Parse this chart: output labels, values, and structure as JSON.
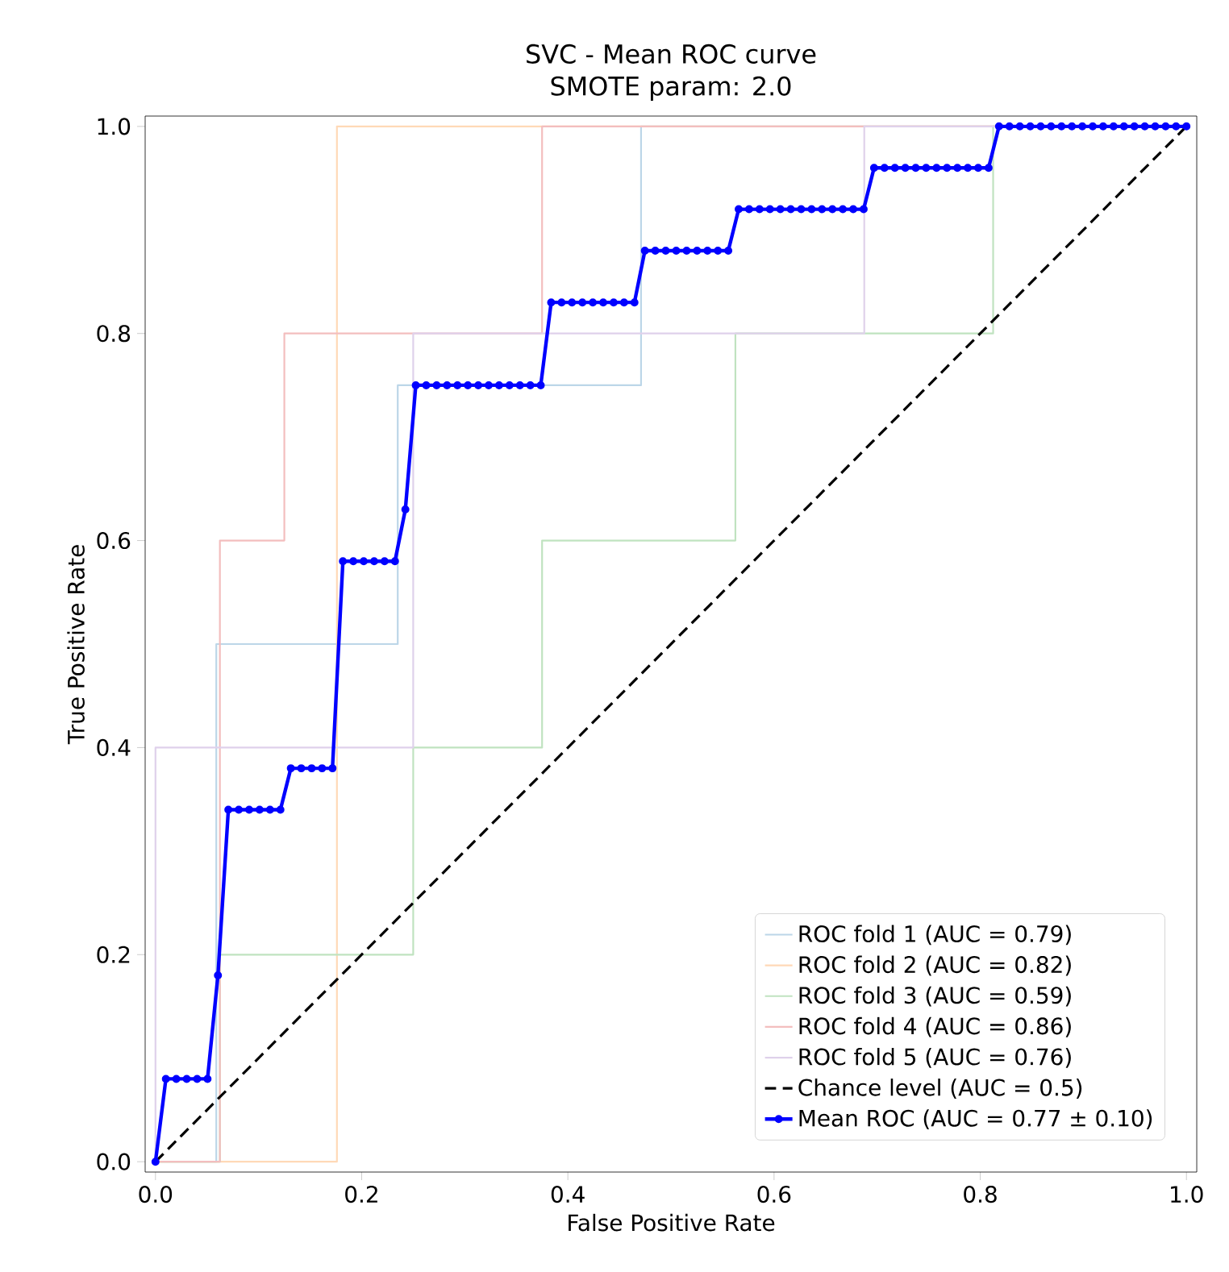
{
  "chart_data": {
    "type": "line",
    "title": "SVC - Mean ROC curve",
    "subtitle": "SMOTE  param: 2.0",
    "xlabel": "False Positive Rate",
    "ylabel": "True Positive Rate",
    "xlim": [
      -0.01,
      1.01
    ],
    "ylim": [
      -0.01,
      1.01
    ],
    "xticks": [
      {
        "value": 0,
        "label": "0.0"
      },
      {
        "value": 0.2,
        "label": "0.2"
      },
      {
        "value": 0.4,
        "label": "0.4"
      },
      {
        "value": 0.6,
        "label": "0.6"
      },
      {
        "value": 0.8,
        "label": "0.8"
      },
      {
        "value": 1,
        "label": "1.0"
      }
    ],
    "yticks": [
      {
        "value": 0,
        "label": "0.0"
      },
      {
        "value": 0.2,
        "label": "0.2"
      },
      {
        "value": 0.4,
        "label": "0.4"
      },
      {
        "value": 0.6,
        "label": "0.6"
      },
      {
        "value": 0.8,
        "label": "0.8"
      },
      {
        "value": 1,
        "label": "1.0"
      }
    ],
    "legend": "bottom right",
    "marker": "none",
    "line_style": "solid",
    "series": [
      {
        "name": "ROC fold 1 (AUC = 0.79)",
        "color": "#bcd6e8",
        "x": [
          0,
          0.059,
          0.059,
          0.235,
          0.235,
          0.471,
          0.471,
          1
        ],
        "values": [
          0,
          0,
          0.5,
          0.5,
          0.75,
          0.75,
          1,
          1
        ]
      },
      {
        "name": "ROC fold 2 (AUC = 0.82)",
        "color": "#ffd9b7",
        "x": [
          0,
          0.176,
          0.176,
          1
        ],
        "values": [
          0,
          0,
          1,
          1
        ]
      },
      {
        "name": "ROC fold 3 (AUC = 0.59)",
        "color": "#c0e3c0",
        "x": [
          0,
          0.0625,
          0.0625,
          0.25,
          0.25,
          0.375,
          0.375,
          0.5625,
          0.5625,
          0.8125,
          0.8125,
          1
        ],
        "values": [
          0,
          0,
          0.2,
          0.2,
          0.4,
          0.4,
          0.6,
          0.6,
          0.8,
          0.8,
          1,
          1
        ]
      },
      {
        "name": "ROC fold 4 (AUC = 0.86)",
        "color": "#f3bebe",
        "x": [
          0,
          0.0625,
          0.0625,
          0.125,
          0.125,
          0.375,
          0.375,
          1
        ],
        "values": [
          0,
          0,
          0.6,
          0.6,
          0.8,
          0.8,
          1,
          1
        ]
      },
      {
        "name": "ROC fold 5 (AUC = 0.76)",
        "color": "#dfd1eb",
        "x": [
          0,
          0,
          0.25,
          0.25,
          0.6875,
          0.6875,
          1
        ],
        "values": [
          0,
          0.4,
          0.4,
          0.8,
          0.8,
          1,
          1
        ]
      },
      {
        "name": "Chance level (AUC = 0.5)",
        "color": "#000000",
        "line_style": "dashed",
        "x": [
          0,
          1
        ],
        "values": [
          0,
          1
        ]
      },
      {
        "name": "Mean ROC (AUC = 0.77 ± 0.10)",
        "color": "#0000ff",
        "marker": "circle",
        "x": [
          0,
          0.0101,
          0.0202,
          0.0303,
          0.0404,
          0.0505,
          0.0606,
          0.0707,
          0.0808,
          0.0909,
          0.101,
          0.1111,
          0.1212,
          0.1313,
          0.1414,
          0.1515,
          0.1616,
          0.1717,
          0.1818,
          0.1919,
          0.202,
          0.2121,
          0.2222,
          0.2323,
          0.2424,
          0.2525,
          0.2626,
          0.2727,
          0.2828,
          0.2929,
          0.303,
          0.3131,
          0.3232,
          0.3333,
          0.3434,
          0.3535,
          0.3636,
          0.3737,
          0.3838,
          0.3939,
          0.404,
          0.4141,
          0.4242,
          0.4343,
          0.4444,
          0.4545,
          0.4646,
          0.4747,
          0.4848,
          0.4949,
          0.5051,
          0.5152,
          0.5253,
          0.5354,
          0.5455,
          0.5556,
          0.5657,
          0.5758,
          0.5859,
          0.596,
          0.6061,
          0.6162,
          0.6263,
          0.6364,
          0.6465,
          0.6566,
          0.6667,
          0.6768,
          0.6869,
          0.697,
          0.7071,
          0.7172,
          0.7273,
          0.7374,
          0.7475,
          0.7576,
          0.7677,
          0.7778,
          0.7879,
          0.798,
          0.8081,
          0.8182,
          0.8283,
          0.8384,
          0.8485,
          0.8586,
          0.8687,
          0.8788,
          0.8889,
          0.899,
          0.9091,
          0.9192,
          0.9293,
          0.9394,
          0.9495,
          0.9596,
          0.9697,
          0.9798,
          0.9899,
          1
        ],
        "values": [
          0,
          0.08,
          0.08,
          0.08,
          0.08,
          0.08,
          0.18,
          0.34,
          0.34,
          0.34,
          0.34,
          0.34,
          0.34,
          0.38,
          0.38,
          0.38,
          0.38,
          0.38,
          0.58,
          0.58,
          0.58,
          0.58,
          0.58,
          0.58,
          0.63,
          0.75,
          0.75,
          0.75,
          0.75,
          0.75,
          0.75,
          0.75,
          0.75,
          0.75,
          0.75,
          0.75,
          0.75,
          0.75,
          0.83,
          0.83,
          0.83,
          0.83,
          0.83,
          0.83,
          0.83,
          0.83,
          0.83,
          0.88,
          0.88,
          0.88,
          0.88,
          0.88,
          0.88,
          0.88,
          0.88,
          0.88,
          0.92,
          0.92,
          0.92,
          0.92,
          0.92,
          0.92,
          0.92,
          0.92,
          0.92,
          0.92,
          0.92,
          0.92,
          0.92,
          0.96,
          0.96,
          0.96,
          0.96,
          0.96,
          0.96,
          0.96,
          0.96,
          0.96,
          0.96,
          0.96,
          0.96,
          1,
          1,
          1,
          1,
          1,
          1,
          1,
          1,
          1,
          1,
          1,
          1,
          1,
          1,
          1,
          1,
          1,
          1,
          1
        ]
      }
    ]
  }
}
